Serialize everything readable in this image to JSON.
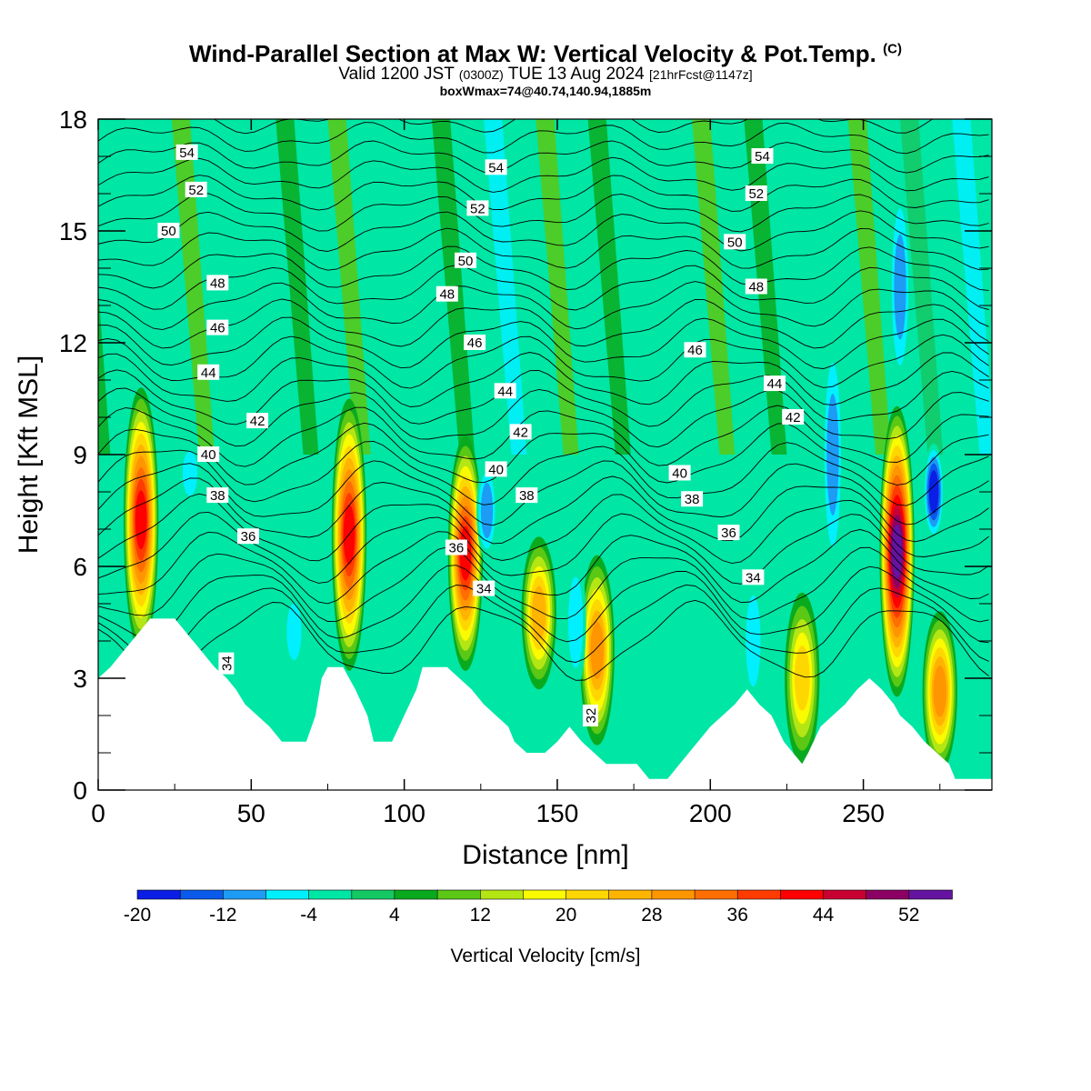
{
  "header": {
    "title": "Wind-Parallel Section at Max W: Vertical Velocity & Pot.Temp.",
    "title_mark": "(C)",
    "valid": "Valid 1200 JST",
    "utc": "(0300Z)",
    "date": "TUE 13 Aug 2024",
    "forecast": "[21hrFcst@1147z]",
    "box": "boxWmax=74@40.74,140.94,1885m"
  },
  "chart_data": {
    "type": "heatmap",
    "xlabel": "Distance [nm]",
    "ylabel": "Height [Kft MSL]",
    "xlim": [
      0,
      292
    ],
    "ylim": [
      0,
      18
    ],
    "xticks": [
      0,
      50,
      100,
      150,
      200,
      250
    ],
    "yticks": [
      0,
      3,
      6,
      9,
      12,
      15,
      18
    ],
    "colorbar": {
      "label": "Vertical Velocity [cm/s]",
      "min": -20,
      "step": 4,
      "tick_labels": [
        "-20",
        "-12",
        "-4",
        "4",
        "12",
        "20",
        "28",
        "36",
        "44",
        "52"
      ],
      "colors": [
        "#0a1ee6",
        "#0a5aeb",
        "#1e9bf5",
        "#00f0ff",
        "#00e6a5",
        "#14c864",
        "#0aaa1e",
        "#5ac814",
        "#b4e614",
        "#fafa00",
        "#ffd700",
        "#ffb400",
        "#ff9600",
        "#ff6e00",
        "#ff3c00",
        "#ff0000",
        "#c80032",
        "#8c0064",
        "#6414a0"
      ]
    },
    "updraft_cores": [
      {
        "x": 14,
        "base": 4.0,
        "top": 10.5,
        "w": 40
      },
      {
        "x": 82,
        "base": 3.5,
        "top": 10.2,
        "w": 40
      },
      {
        "x": 120,
        "base": 3.5,
        "top": 9.2,
        "w": 40
      },
      {
        "x": 144,
        "base": 3.0,
        "top": 6.5,
        "w": 24
      },
      {
        "x": 163,
        "base": 1.5,
        "top": 6.0,
        "w": 30
      },
      {
        "x": 230,
        "base": 1.0,
        "top": 5.0,
        "w": 20
      },
      {
        "x": 261,
        "base": 2.8,
        "top": 10.0,
        "w": 52
      },
      {
        "x": 275,
        "base": 0.8,
        "top": 4.5,
        "w": 30
      }
    ],
    "downdraft_cores": [
      {
        "x": 30,
        "bottom": 8.0,
        "top": 9.0,
        "w": -8
      },
      {
        "x": 64,
        "bottom": 3.5,
        "top": 5.0,
        "w": -8
      },
      {
        "x": 127,
        "bottom": 6.5,
        "top": 8.5,
        "w": -12
      },
      {
        "x": 156,
        "bottom": 3.0,
        "top": 6.0,
        "w": -8
      },
      {
        "x": 214,
        "bottom": 2.5,
        "top": 5.5,
        "w": -8
      },
      {
        "x": 240,
        "bottom": 6.0,
        "top": 12.0,
        "w": -12
      },
      {
        "x": 273,
        "bottom": 7.0,
        "top": 9.0,
        "w": -20
      },
      {
        "x": 262,
        "bottom": 11.0,
        "top": 16.0,
        "w": -12
      }
    ],
    "terrain": [
      [
        0,
        3.0
      ],
      [
        4,
        3.3
      ],
      [
        8,
        3.7
      ],
      [
        11,
        4.0
      ],
      [
        14,
        4.3
      ],
      [
        17,
        4.6
      ],
      [
        25,
        4.6
      ],
      [
        28,
        4.3
      ],
      [
        31,
        4.0
      ],
      [
        34,
        3.7
      ],
      [
        38,
        3.3
      ],
      [
        42,
        3.0
      ],
      [
        45,
        2.7
      ],
      [
        48,
        2.3
      ],
      [
        52,
        2.0
      ],
      [
        56,
        1.7
      ],
      [
        60,
        1.3
      ],
      [
        68,
        1.3
      ],
      [
        71,
        2.0
      ],
      [
        73,
        3.0
      ],
      [
        75,
        3.3
      ],
      [
        80,
        3.3
      ],
      [
        84,
        2.7
      ],
      [
        88,
        2.0
      ],
      [
        90,
        1.3
      ],
      [
        96,
        1.3
      ],
      [
        100,
        2.0
      ],
      [
        104,
        2.7
      ],
      [
        106,
        3.3
      ],
      [
        114,
        3.3
      ],
      [
        118,
        3.0
      ],
      [
        122,
        2.7
      ],
      [
        126,
        2.3
      ],
      [
        130,
        2.0
      ],
      [
        134,
        1.7
      ],
      [
        136,
        1.3
      ],
      [
        140,
        1.0
      ],
      [
        146,
        1.0
      ],
      [
        150,
        1.3
      ],
      [
        154,
        1.7
      ],
      [
        158,
        1.3
      ],
      [
        162,
        1.0
      ],
      [
        166,
        0.7
      ],
      [
        176,
        0.7
      ],
      [
        180,
        0.3
      ],
      [
        186,
        0.3
      ],
      [
        190,
        0.7
      ],
      [
        193,
        1.0
      ],
      [
        196,
        1.3
      ],
      [
        200,
        1.7
      ],
      [
        204,
        2.0
      ],
      [
        208,
        2.3
      ],
      [
        212,
        2.7
      ],
      [
        216,
        2.3
      ],
      [
        220,
        2.0
      ],
      [
        224,
        1.3
      ],
      [
        227,
        1.0
      ],
      [
        230,
        0.7
      ],
      [
        232,
        1.0
      ],
      [
        236,
        1.7
      ],
      [
        240,
        2.0
      ],
      [
        244,
        2.3
      ],
      [
        248,
        2.7
      ],
      [
        252,
        3.0
      ],
      [
        256,
        2.7
      ],
      [
        260,
        2.3
      ],
      [
        262,
        2.0
      ],
      [
        266,
        1.7
      ],
      [
        270,
        1.3
      ],
      [
        274,
        1.0
      ],
      [
        278,
        0.7
      ],
      [
        280,
        0.3
      ],
      [
        292,
        0.3
      ]
    ],
    "theta_labels": [
      {
        "x": 29,
        "y": 17.1,
        "text": "54"
      },
      {
        "x": 32,
        "y": 16.1,
        "text": "52"
      },
      {
        "x": 23,
        "y": 15.0,
        "text": "50"
      },
      {
        "x": 39,
        "y": 13.6,
        "text": "48"
      },
      {
        "x": 39,
        "y": 12.4,
        "text": "46"
      },
      {
        "x": 36,
        "y": 11.2,
        "text": "44"
      },
      {
        "x": 52,
        "y": 9.9,
        "text": "42"
      },
      {
        "x": 36,
        "y": 9.0,
        "text": "40"
      },
      {
        "x": 39,
        "y": 7.9,
        "text": "38"
      },
      {
        "x": 49,
        "y": 6.8,
        "text": "36"
      },
      {
        "x": 42,
        "y": 3.4,
        "text": "34",
        "rot": -90
      },
      {
        "x": 130,
        "y": 16.7,
        "text": "54"
      },
      {
        "x": 124,
        "y": 15.6,
        "text": "52"
      },
      {
        "x": 120,
        "y": 14.2,
        "text": "50"
      },
      {
        "x": 114,
        "y": 13.3,
        "text": "48"
      },
      {
        "x": 123,
        "y": 12.0,
        "text": "46"
      },
      {
        "x": 133,
        "y": 10.7,
        "text": "44"
      },
      {
        "x": 138,
        "y": 9.6,
        "text": "42"
      },
      {
        "x": 130,
        "y": 8.6,
        "text": "40"
      },
      {
        "x": 140,
        "y": 7.9,
        "text": "38"
      },
      {
        "x": 117,
        "y": 6.5,
        "text": "36"
      },
      {
        "x": 126,
        "y": 5.4,
        "text": "34"
      },
      {
        "x": 161,
        "y": 2.0,
        "text": "32",
        "rot": -90
      },
      {
        "x": 217,
        "y": 17.0,
        "text": "54"
      },
      {
        "x": 215,
        "y": 16.0,
        "text": "52"
      },
      {
        "x": 208,
        "y": 14.7,
        "text": "50"
      },
      {
        "x": 215,
        "y": 13.5,
        "text": "48"
      },
      {
        "x": 195,
        "y": 11.8,
        "text": "46"
      },
      {
        "x": 221,
        "y": 10.9,
        "text": "44"
      },
      {
        "x": 227,
        "y": 10.0,
        "text": "42"
      },
      {
        "x": 190,
        "y": 8.5,
        "text": "40"
      },
      {
        "x": 194,
        "y": 7.8,
        "text": "38"
      },
      {
        "x": 206,
        "y": 6.9,
        "text": "36"
      },
      {
        "x": 214,
        "y": 5.7,
        "text": "34"
      }
    ]
  }
}
